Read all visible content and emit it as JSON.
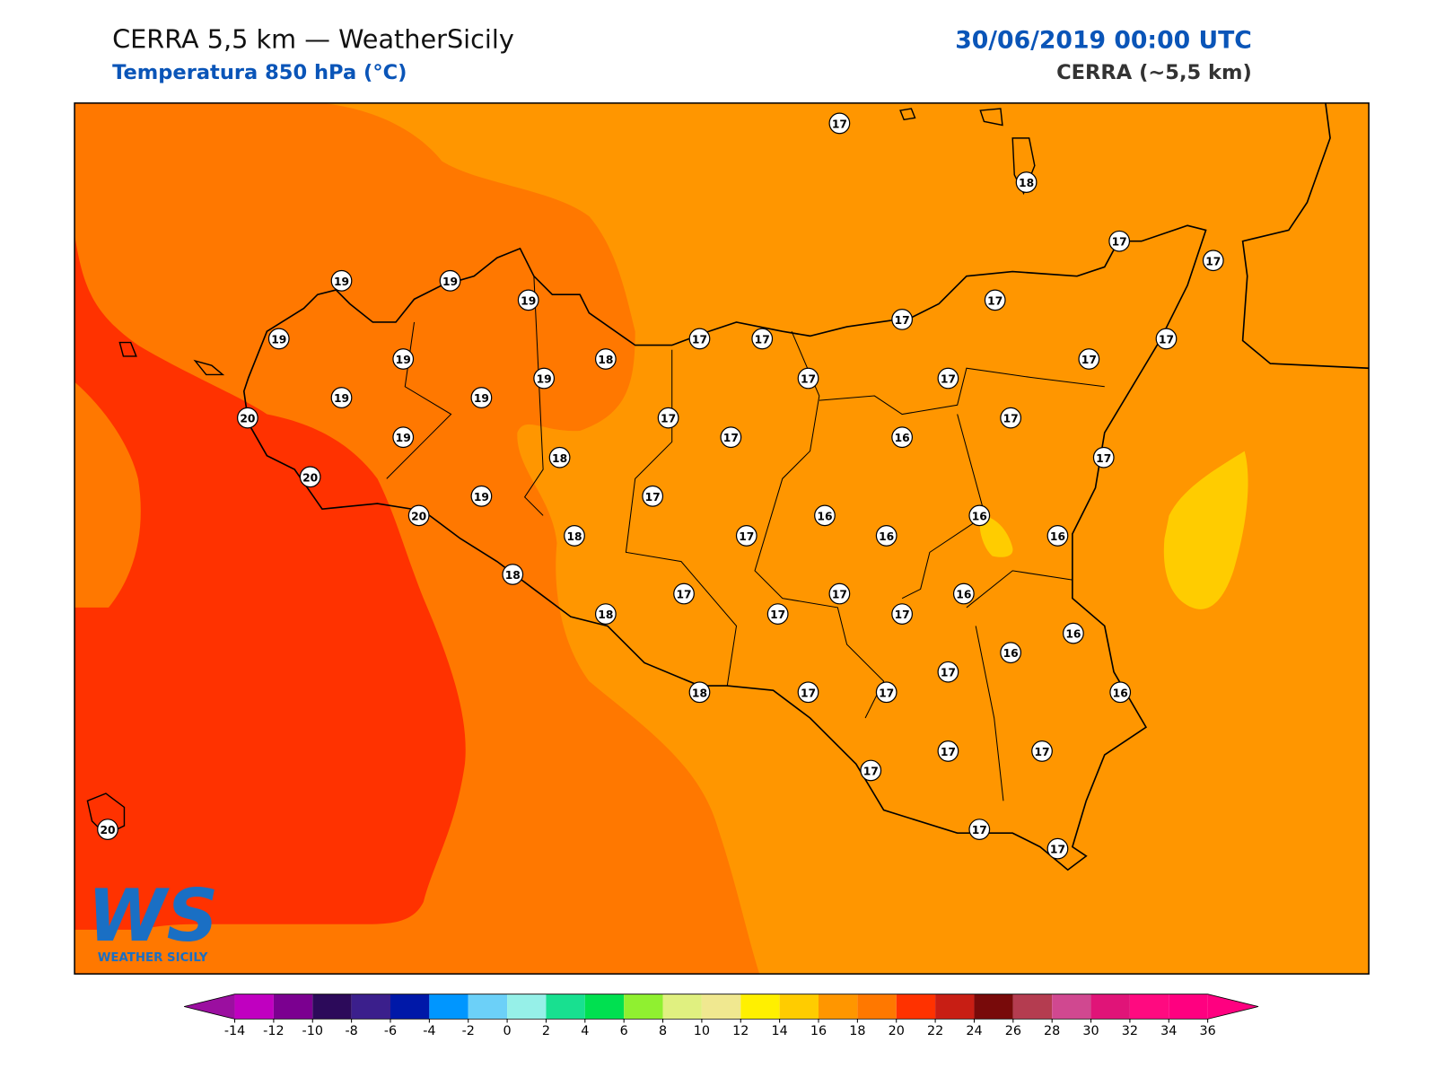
{
  "header": {
    "title": "CERRA 5,5 km — WeatherSicily",
    "subtitle": "Temperatura 850 hPa (°C)",
    "datetime": "30/06/2019 00:00 UTC",
    "model": "CERRA (~5,5 km)"
  },
  "map": {
    "station_values": [
      17,
      18,
      17,
      17,
      19,
      19,
      19,
      17,
      17,
      19,
      17,
      17,
      17,
      19,
      18,
      17,
      19,
      17,
      17,
      19,
      19,
      20,
      17,
      17,
      19,
      17,
      16,
      18,
      17,
      20,
      17,
      19,
      20,
      16,
      16,
      18,
      17,
      16,
      16,
      18,
      17,
      17,
      16,
      18,
      17,
      17,
      16,
      16,
      17,
      18,
      17,
      17,
      16,
      17,
      17,
      17,
      20,
      17,
      17
    ]
  },
  "colorbar": {
    "lim": [
      -14,
      36
    ],
    "ticks": [
      -14,
      -12,
      -10,
      -8,
      -6,
      -4,
      -2,
      0,
      2,
      4,
      6,
      8,
      10,
      12,
      14,
      16,
      18,
      20,
      22,
      24,
      26,
      28,
      30,
      32,
      34,
      36
    ],
    "colors": [
      "#c000c0",
      "#7b0090",
      "#2c0a5a",
      "#3b1f8c",
      "#0018a8",
      "#0096ff",
      "#6cd0f8",
      "#96f0e8",
      "#18e090",
      "#00e050",
      "#90f030",
      "#e0f080",
      "#f0e890",
      "#fff000",
      "#ffcc00",
      "#ff9600",
      "#ff7800",
      "#ff3200",
      "#c81e14",
      "#780a0a",
      "#b43c50",
      "#d04890",
      "#e01478",
      "#ff0a80",
      "#ff0080"
    ],
    "under": "#9b0fa0",
    "over": "#ff0080"
  },
  "logo": {
    "mark": "WS",
    "text": "WEATHER SICILY"
  }
}
